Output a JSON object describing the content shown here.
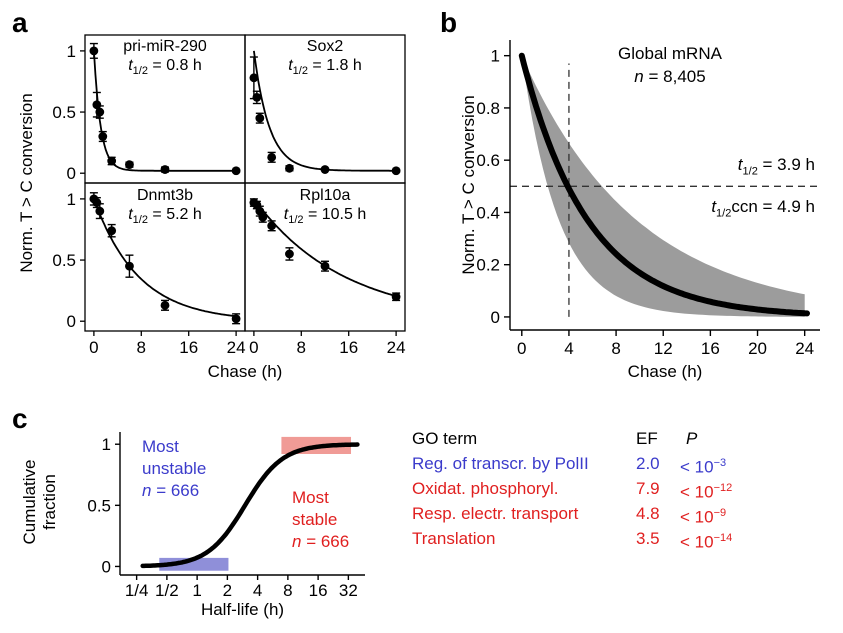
{
  "colors": {
    "blue": "#3b3bcb",
    "red": "#e01f1f",
    "band_gray": "#9c9c9c",
    "blue_region": "#8f8fd9",
    "red_region": "#f09b96"
  },
  "panels": {
    "a": {
      "letter": "a",
      "xlabel": "Chase (h)",
      "ylabel": "Norm. T > C conversion"
    },
    "b": {
      "letter": "b",
      "xlabel": "Chase (h)",
      "ylabel": "Norm. T > C conversion",
      "annotations": {
        "title": "Global mRNA",
        "n": {
          "var": "n",
          "rest": " = 8,405"
        },
        "thalf": {
          "var": "t",
          "sub": "1/2",
          "rest": " = 3.9 h"
        },
        "thalf_ccn": {
          "var": "t",
          "sub": "1/2",
          "mid": "ccn",
          "rest": " = 4.9 h"
        }
      }
    },
    "c": {
      "letter": "c",
      "xlabel": "Half-life (h)",
      "ylabel_line1": "Cumulative",
      "ylabel_line2": "fraction",
      "annotations": {
        "unstable": {
          "line1": "Most",
          "line2": "unstable",
          "n_var": "n",
          "n_rest": " = 666"
        },
        "stable": {
          "line1": "Most",
          "line2": "stable",
          "n_var": "n",
          "n_rest": " = 666"
        }
      }
    }
  },
  "go_table": {
    "headers": {
      "term": "GO term",
      "ef": "EF",
      "p": "P"
    },
    "rows": [
      {
        "term": "Reg. of transcr. by PolII",
        "ef": "2.0",
        "p_base": "< 10",
        "p_exp": "−3",
        "color": "blue"
      },
      {
        "term": "Oxidat. phosphoryl.",
        "ef": "7.9",
        "p_base": "< 10",
        "p_exp": "−12",
        "color": "red"
      },
      {
        "term": "Resp. electr. transport",
        "ef": "4.8",
        "p_base": "< 10",
        "p_exp": "−9",
        "color": "red"
      },
      {
        "term": "Translation",
        "ef": "3.5",
        "p_base": "< 10",
        "p_exp": "−14",
        "color": "red"
      }
    ]
  },
  "chart_data": [
    {
      "id": "panel-a",
      "type": "line",
      "kind": "decay-grid",
      "xlabel": "Chase (h)",
      "ylabel": "Norm. T > C conversion",
      "xlim": [
        -1.5,
        25.5
      ],
      "ylim": [
        -0.08,
        1.13
      ],
      "xticks": [
        {
          "v": 0,
          "label": "0"
        },
        {
          "v": 8,
          "label": "8"
        },
        {
          "v": 16,
          "label": "16"
        },
        {
          "v": 24,
          "label": "24"
        }
      ],
      "yticks": [
        {
          "v": 0,
          "label": "0"
        },
        {
          "v": 0.5,
          "label": "0.5"
        },
        {
          "v": 1,
          "label": "1"
        }
      ],
      "subplots": [
        {
          "name": "pri-miR-290",
          "thalf": {
            "var": "t",
            "sub": "1/2",
            "rest": " = 0.8 h"
          },
          "half_life_h": 0.8,
          "plateau": 0.02,
          "points": [
            {
              "x": 0,
              "y": 1.0,
              "err": 0.06
            },
            {
              "x": 0.5,
              "y": 0.56,
              "err": 0.1
            },
            {
              "x": 1,
              "y": 0.5,
              "err": 0.05
            },
            {
              "x": 1.5,
              "y": 0.3,
              "err": 0.04
            },
            {
              "x": 3,
              "y": 0.1,
              "err": 0.03
            },
            {
              "x": 6,
              "y": 0.07,
              "err": 0.02
            },
            {
              "x": 12,
              "y": 0.03,
              "err": 0.02
            },
            {
              "x": 24,
              "y": 0.02,
              "err": 0.01
            }
          ]
        },
        {
          "name": "Sox2",
          "thalf": {
            "var": "t",
            "sub": "1/2",
            "rest": " = 1.8 h"
          },
          "half_life_h": 1.8,
          "plateau": 0.02,
          "points": [
            {
              "x": 0,
              "y": 0.78,
              "err": 0.17
            },
            {
              "x": 0.5,
              "y": 0.62,
              "err": 0.05
            },
            {
              "x": 1,
              "y": 0.45,
              "err": 0.04
            },
            {
              "x": 3,
              "y": 0.13,
              "err": 0.04
            },
            {
              "x": 6,
              "y": 0.04,
              "err": 0.02
            },
            {
              "x": 12,
              "y": 0.03,
              "err": 0.01
            },
            {
              "x": 24,
              "y": 0.02,
              "err": 0.01
            }
          ]
        },
        {
          "name": "Dnmt3b",
          "thalf": {
            "var": "t",
            "sub": "1/2",
            "rest": " = 5.2 h"
          },
          "half_life_h": 5.2,
          "plateau": 0.0,
          "points": [
            {
              "x": 0,
              "y": 1.0,
              "err": 0.05
            },
            {
              "x": 0.5,
              "y": 0.97,
              "err": 0.04
            },
            {
              "x": 1,
              "y": 0.9,
              "err": 0.06
            },
            {
              "x": 3,
              "y": 0.74,
              "err": 0.05
            },
            {
              "x": 6,
              "y": 0.45,
              "err": 0.09
            },
            {
              "x": 12,
              "y": 0.13,
              "err": 0.04
            },
            {
              "x": 24,
              "y": 0.02,
              "err": 0.04
            }
          ]
        },
        {
          "name": "Rpl10a",
          "thalf": {
            "var": "t",
            "sub": "1/2",
            "rest": " = 10.5 h"
          },
          "half_life_h": 10.5,
          "plateau": 0.0,
          "points": [
            {
              "x": 0,
              "y": 0.97,
              "err": 0.03
            },
            {
              "x": 0.5,
              "y": 0.95,
              "err": 0.03
            },
            {
              "x": 1,
              "y": 0.9,
              "err": 0.04
            },
            {
              "x": 1.5,
              "y": 0.85,
              "err": 0.04
            },
            {
              "x": 3,
              "y": 0.78,
              "err": 0.04
            },
            {
              "x": 6,
              "y": 0.55,
              "err": 0.05
            },
            {
              "x": 12,
              "y": 0.45,
              "err": 0.04
            },
            {
              "x": 24,
              "y": 0.2,
              "err": 0.03
            }
          ]
        }
      ]
    },
    {
      "id": "panel-b",
      "type": "line",
      "kind": "band-decay",
      "title": "Global mRNA",
      "n": 8405,
      "half_life_h": 3.9,
      "half_life_ccn_h": 4.9,
      "band_upper_half_life_h": 6.8,
      "band_lower_half_life_h": 2.2,
      "dashed_x": 4,
      "dashed_y": 0.5,
      "xlabel": "Chase (h)",
      "ylabel": "Norm. T > C conversion",
      "xlim": [
        -1,
        25.3
      ],
      "ylim": [
        -0.05,
        1.06
      ],
      "xticks": [
        {
          "v": 0,
          "label": "0"
        },
        {
          "v": 4,
          "label": "4"
        },
        {
          "v": 8,
          "label": "8"
        },
        {
          "v": 12,
          "label": "12"
        },
        {
          "v": 16,
          "label": "16"
        },
        {
          "v": 20,
          "label": "20"
        },
        {
          "v": 24,
          "label": "24"
        }
      ],
      "yticks": [
        {
          "v": 0,
          "label": "0"
        },
        {
          "v": 0.2,
          "label": "0.2"
        },
        {
          "v": 0.4,
          "label": "0.4"
        },
        {
          "v": 0.6,
          "label": "0.6"
        },
        {
          "v": 0.8,
          "label": "0.8"
        },
        {
          "v": 1,
          "label": "1"
        }
      ]
    },
    {
      "id": "panel-c",
      "type": "line",
      "kind": "cumulative",
      "xlabel": "Half-life (h)",
      "ylabel": "Cumulative fraction",
      "x_scale": "log2",
      "xlim_log2": [
        -2.55,
        5.55
      ],
      "ylim": [
        -0.07,
        1.1
      ],
      "xticks": [
        {
          "v": 0.25,
          "label": "1/4"
        },
        {
          "v": 0.5,
          "label": "1/2"
        },
        {
          "v": 1,
          "label": "1"
        },
        {
          "v": 2,
          "label": "2"
        },
        {
          "v": 4,
          "label": "4"
        },
        {
          "v": 8,
          "label": "8"
        },
        {
          "v": 16,
          "label": "16"
        },
        {
          "v": 32,
          "label": "32"
        }
      ],
      "yticks": [
        {
          "v": 0,
          "label": "0"
        },
        {
          "v": 0.5,
          "label": "0.5"
        },
        {
          "v": 1,
          "label": "1"
        }
      ],
      "curve": {
        "model": "logistic_in_log2_halflife",
        "midpoint_h": 3.0,
        "slope_log2": 0.62
      },
      "regions": [
        {
          "name": "most_unstable",
          "n": 666,
          "x_h": [
            0.42,
            2.05
          ],
          "y": [
            -0.035,
            0.07
          ],
          "color": "blue_region"
        },
        {
          "name": "most_stable",
          "n": 666,
          "x_h": [
            6.9,
            34
          ],
          "y": [
            0.92,
            1.06
          ],
          "color": "red_region"
        }
      ]
    }
  ]
}
